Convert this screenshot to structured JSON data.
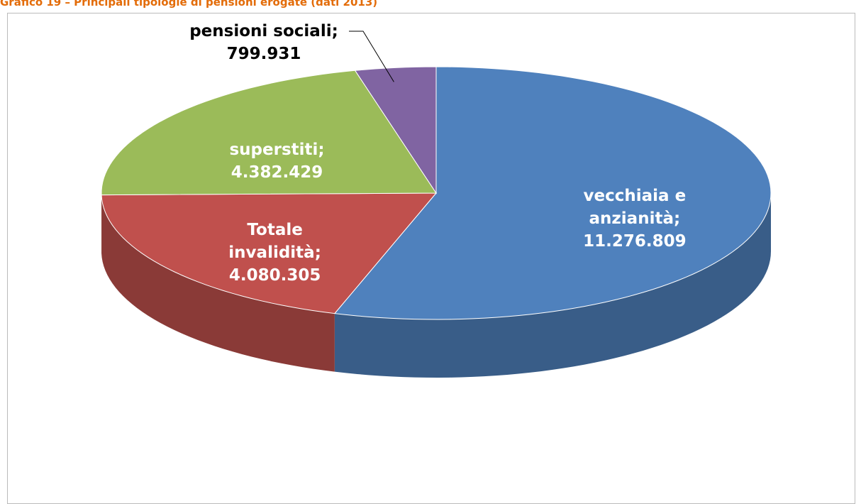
{
  "chart_data": {
    "type": "pie3d",
    "title": "Grafico 19 – Principali tipologie di pensioni erogate (dati 2013)",
    "categories": [
      "vecchiaia e anzianità;",
      "Totale invalidità;",
      "superstiti;",
      "pensioni sociali;"
    ],
    "values": [
      11276809,
      4080305,
      4382429,
      799931
    ],
    "value_labels": [
      "11.276.809",
      "4.080.305",
      "4.382.429",
      "799.931"
    ],
    "colors": [
      "#4f81bd",
      "#c0504d",
      "#9bbb59",
      "#8064a2"
    ]
  }
}
